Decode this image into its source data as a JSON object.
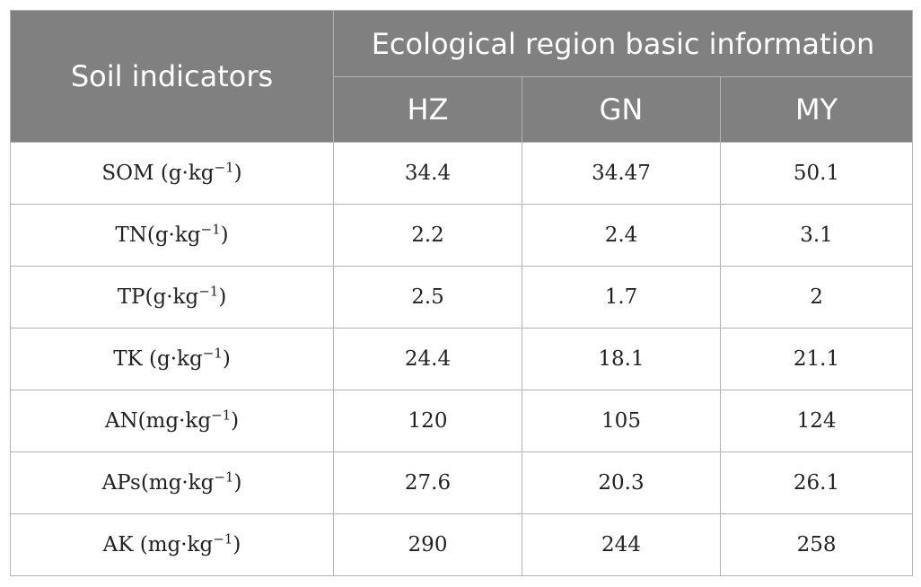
{
  "table": {
    "header": {
      "row_label": "Soil indicators",
      "group_label": "Ecological region basic information",
      "columns": [
        "HZ",
        "GN",
        "MY"
      ]
    },
    "rows": [
      {
        "indicator": "SOM (g·kg",
        "exp": "−1",
        "close": ")",
        "values": [
          "34.4",
          "34.47",
          "50.1"
        ]
      },
      {
        "indicator": "TN(g·kg",
        "exp": "−1",
        "close": ")",
        "values": [
          "2.2",
          "2.4",
          "3.1"
        ]
      },
      {
        "indicator": "TP(g·kg",
        "exp": "−1",
        "close": ")",
        "values": [
          "2.5",
          "1.7",
          "2"
        ]
      },
      {
        "indicator": "TK (g·kg",
        "exp": "−1",
        "close": ")",
        "values": [
          "24.4",
          "18.1",
          "21.1"
        ]
      },
      {
        "indicator": "AN(mg·kg",
        "exp": "−1",
        "close": ")",
        "values": [
          "120",
          "105",
          "124"
        ]
      },
      {
        "indicator": "APs(mg·kg",
        "exp": "−1",
        "close": ")",
        "values": [
          "27.6",
          "20.3",
          "26.1"
        ]
      },
      {
        "indicator": "AK (mg·kg",
        "exp": "−1",
        "close": ")",
        "values": [
          "290",
          "244",
          "258"
        ]
      }
    ]
  },
  "colors": {
    "header_bg": "#808080",
    "header_text": "#ffffff",
    "grid_line": "#b3b3b3"
  }
}
